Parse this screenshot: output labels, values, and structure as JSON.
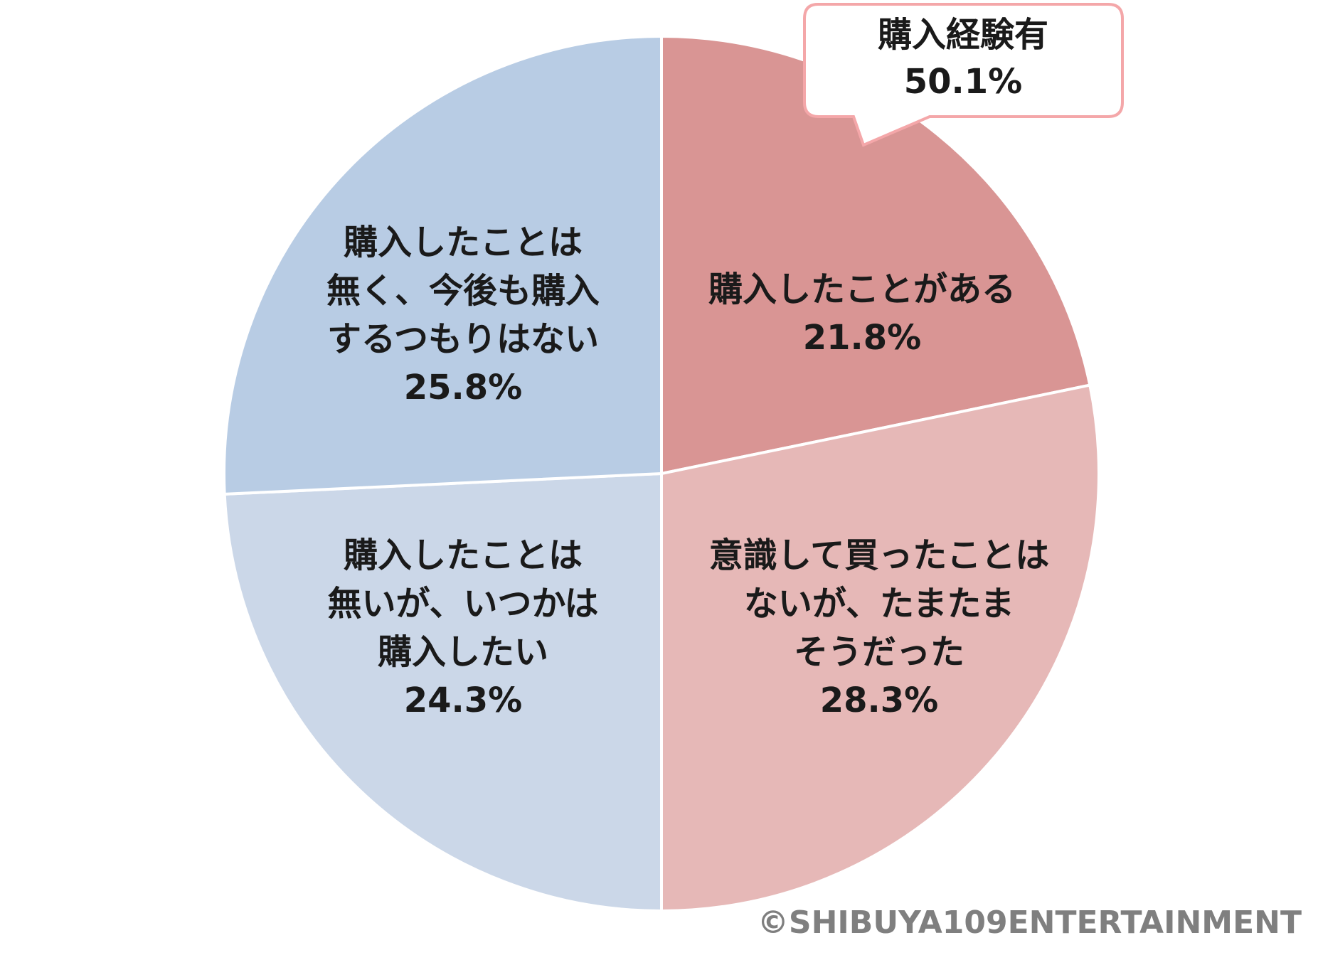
{
  "chart_data": {
    "type": "pie",
    "categories": [
      [
        "購入したことがある"
      ],
      [
        "意識して買ったことは",
        "ないが、たまたま",
        "そうだった"
      ],
      [
        "購入したことは",
        "無いが、いつかは",
        "購入したい"
      ],
      [
        "購入したことは",
        "無く、今後も購入",
        "するつもりはない"
      ]
    ],
    "values": [
      21.8,
      28.3,
      24.3,
      25.8
    ],
    "value_labels": [
      "21.8%",
      "28.3%",
      "24.3%",
      "25.8%"
    ],
    "colors": [
      "#d99594",
      "#e6b8b7",
      "#cbd7e8",
      "#b8cce4"
    ],
    "annotation": [
      "購入経験有",
      "50.1%"
    ],
    "credit": "©SHIBUYA109ENTERTAINMENT"
  }
}
